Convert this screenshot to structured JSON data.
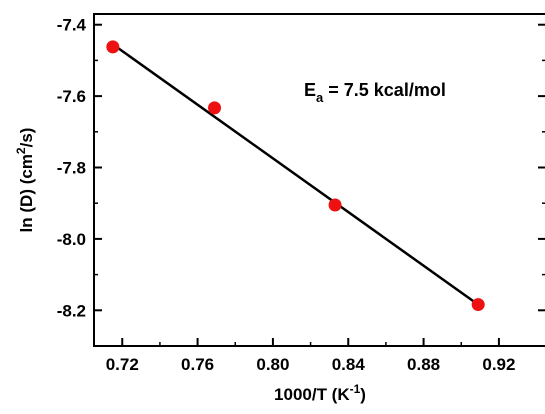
{
  "chart_data": {
    "type": "scatter",
    "title": "",
    "xlabel": {
      "base": "1000/T (K",
      "sup": "-1",
      "tail": ")"
    },
    "ylabel": {
      "base": "ln (D) (cm",
      "sup": "2",
      "tail": "/s)"
    },
    "xlim": [
      0.705,
      0.945
    ],
    "ylim": [
      -8.3,
      -7.37
    ],
    "xticks": [
      0.72,
      0.76,
      0.8,
      0.84,
      0.88,
      0.92
    ],
    "xtick_labels": [
      "0.72",
      "0.76",
      "0.80",
      "0.84",
      "0.88",
      "0.92"
    ],
    "yticks": [
      -7.4,
      -7.6,
      -7.8,
      -8.0,
      -8.2
    ],
    "ytick_labels": [
      "-7.4",
      "-7.6",
      "-7.8",
      "-8.0",
      "-8.2"
    ],
    "grid": false,
    "series": [
      {
        "kind": "points",
        "color": "#ee1111",
        "x": [
          0.715,
          0.769,
          0.833,
          0.909
        ],
        "y": [
          -7.462,
          -7.633,
          -7.905,
          -8.184
        ]
      },
      {
        "kind": "fit-line",
        "color": "#000000",
        "x": [
          0.715,
          0.909
        ],
        "y": [
          -7.455,
          -8.184
        ]
      }
    ],
    "annotation": {
      "base": "E",
      "sub": "a",
      "tail": " = 7.5 kcal/mol"
    }
  }
}
